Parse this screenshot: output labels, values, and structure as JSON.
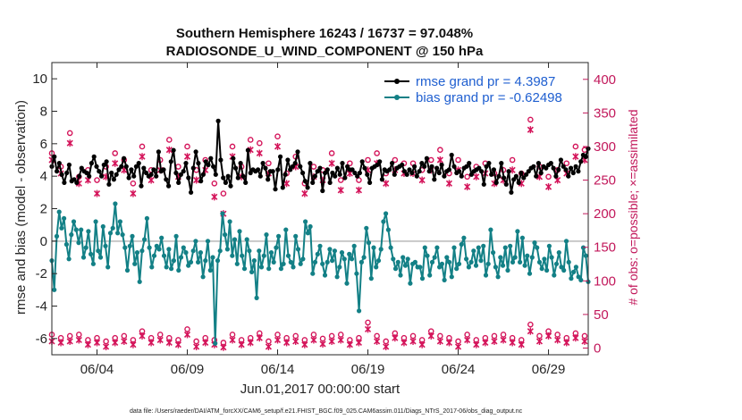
{
  "chart_data": {
    "type": "line",
    "title_line1": "Southern Hemisphere 16243 / 16737 = 97.048%",
    "title_line2": "RADIOSONDE_U_WIND_COMPONENT @ 150 hPa",
    "xlabel": "Jun.01,2017 00:00:00 start",
    "ylabel": "rmse and bias (model - observation)",
    "ylabel_right": "# of obs: o=possible; ×=assimilated",
    "xlim": [
      1.5,
      31.2
    ],
    "ylim": [
      -7,
      11
    ],
    "ylim_right": [
      -10,
      425
    ],
    "x_ticks": [
      4,
      9,
      14,
      19,
      24,
      29
    ],
    "x_tick_labels": [
      "06/04",
      "06/09",
      "06/14",
      "06/19",
      "06/24",
      "06/29"
    ],
    "y_ticks": [
      -6,
      -4,
      -2,
      0,
      2,
      4,
      6,
      8,
      10
    ],
    "y_tick_labels": [
      "-6",
      "-4",
      "-2",
      "0",
      "2",
      "4",
      "6",
      "8",
      "10"
    ],
    "y2_ticks": [
      0,
      50,
      100,
      150,
      200,
      250,
      300,
      350,
      400
    ],
    "y2_tick_labels": [
      "0",
      "50",
      "100",
      "150",
      "200",
      "250",
      "300",
      "350",
      "400"
    ],
    "series": [
      {
        "name": "rmse grand pr = 4.3987",
        "color": "#000000",
        "values": [
          4.6,
          5.2,
          4.3,
          4.8,
          4.1,
          3.6,
          4.2,
          4.7,
          3.7,
          3.8,
          3.6,
          4.0,
          4.5,
          4.3,
          4.2,
          4.0,
          4.8,
          5.2,
          4.6,
          4.3,
          4.0,
          4.7,
          4.9,
          3.5,
          4.2,
          3.8,
          4.1,
          4.4,
          4.6,
          5.1,
          4.6,
          3.9,
          4.4,
          4.0,
          4.6,
          4.8,
          3.4,
          4.5,
          4.2,
          4.0,
          4.1,
          4.4,
          4.0,
          5.5,
          4.3,
          4.4,
          3.8,
          3.4,
          4.9,
          5.6,
          4.2,
          3.6,
          4.1,
          4.3,
          4.8,
          3.9,
          3.0,
          4.5,
          5.5,
          4.8,
          3.7,
          4.1,
          4.9,
          4.7,
          5.1,
          4.6,
          4.1,
          7.4,
          5.0,
          3.9,
          3.6,
          4.0,
          3.4,
          5.1,
          4.5,
          3.9,
          4.8,
          4.0,
          3.6,
          5.6,
          4.2,
          4.4,
          4.3,
          4.4,
          4.0,
          4.8,
          4.5,
          3.8,
          4.3,
          4.3,
          3.2,
          4.4,
          5.2,
          3.3,
          4.1,
          5.0,
          4.4,
          4.6,
          4.8,
          5.5,
          4.6,
          4.2,
          3.7,
          3.3,
          4.8,
          3.6,
          4.0,
          4.3,
          4.5,
          3.1,
          4.2,
          4.4,
          3.6,
          4.2,
          4.0,
          4.5,
          4.1,
          4.8,
          3.9,
          4.6,
          4.4,
          4.4,
          4.2,
          4.0,
          4.2,
          4.9,
          4.5,
          4.1,
          3.6,
          4.5,
          4.6,
          4.7,
          4.9,
          3.8,
          4.4,
          4.3,
          4.4,
          4.8,
          4.1,
          4.5,
          4.6,
          4.7,
          4.3,
          4.1,
          4.4,
          4.2,
          4.6,
          4.0,
          4.3,
          4.8,
          4.6,
          5.1,
          4.3,
          4.6,
          3.8,
          4.5,
          4.2,
          4.7,
          4.0,
          4.3,
          4.4,
          5.3,
          4.6,
          4.2,
          4.3,
          4.0,
          4.5,
          4.6,
          4.8,
          4.1,
          4.3,
          4.4,
          4.5,
          4.3,
          3.5,
          4.6,
          4.8,
          4.1,
          4.4,
          3.6,
          4.0,
          4.8,
          3.9,
          3.5,
          4.3,
          3.0,
          3.8,
          4.0,
          3.6,
          4.2,
          3.9,
          4.1,
          4.3,
          4.5,
          4.6,
          4.0,
          4.8,
          4.2,
          4.6,
          4.5,
          4.7,
          4.8,
          4.5,
          4.0,
          4.4,
          5.0,
          4.6,
          4.4,
          4.0,
          4.5,
          4.2,
          4.6,
          4.3,
          4.9,
          5.3,
          5.2,
          5.7
        ]
      },
      {
        "name": "bias grand pr = -0.62498",
        "color": "#138086",
        "values": [
          -1.2,
          -3.0,
          0.3,
          1.8,
          0.8,
          1.4,
          -0.2,
          -1.1,
          0.4,
          1.2,
          0.7,
          -0.1,
          0.7,
          -1.0,
          -0.4,
          0.6,
          -0.8,
          -1.4,
          1.2,
          -0.6,
          -1.0,
          0.9,
          -0.3,
          -1.6,
          0.5,
          0.8,
          2.3,
          0.5,
          1.2,
          0.4,
          -0.4,
          -1.8,
          -0.3,
          0.3,
          -1.4,
          -0.7,
          -2.5,
          -0.6,
          0.1,
          1.4,
          -0.4,
          -1.6,
          -0.9,
          -0.3,
          -0.5,
          0.2,
          -0.9,
          -1.6,
          -0.5,
          -1.7,
          -1.2,
          0.3,
          -1.8,
          -1.0,
          -0.4,
          -0.7,
          -1.5,
          -1.3,
          -0.6,
          0.0,
          -1.3,
          -0.7,
          -2.2,
          -1.2,
          0.0,
          -1.8,
          -1.0,
          -6.3,
          -1.2,
          -0.6,
          1.7,
          0.4,
          -0.5,
          1.2,
          -0.9,
          0.1,
          -1.4,
          0.6,
          -0.9,
          -1.7,
          0.1,
          -0.6,
          -1.9,
          -1.2,
          -3.5,
          -0.6,
          -1.6,
          -0.9,
          0.4,
          -1.7,
          -0.7,
          -1.3,
          -0.4,
          0.3,
          -1.7,
          -1.4,
          0.7,
          -0.9,
          -1.3,
          -1.6,
          0.3,
          -0.5,
          -1.4,
          -1.1,
          1.2,
          0.5,
          0.9,
          -2.0,
          -1.3,
          -0.8,
          -0.3,
          -1.4,
          -2.1,
          -1.3,
          -0.5,
          -1.2,
          -0.6,
          -2.2,
          -1.6,
          -0.7,
          -1.1,
          -2.6,
          -0.8,
          -1.1,
          -0.3,
          -2.0,
          -4.3,
          -1.3,
          -1.0,
          0.8,
          -0.1,
          -2.3,
          -0.4,
          -1.6,
          -1.2,
          -0.5,
          1.2,
          1.7,
          0.7,
          -0.4,
          -1.1,
          -1.7,
          -1.3,
          -2.1,
          -1.0,
          -1.5,
          -1.1,
          -2.6,
          -1.4,
          -1.3,
          -1.6,
          -1.6,
          -2.3,
          -0.4,
          -0.9,
          -2.1,
          -1.3,
          -1.0,
          -0.4,
          -1.6,
          -1.4,
          -2.4,
          -1.0,
          -1.3,
          -2.2,
          -0.4,
          -1.7,
          -1.4,
          -0.2,
          0.2,
          -1.1,
          -1.6,
          -1.3,
          -0.6,
          -1.5,
          -0.4,
          -1.2,
          -0.3,
          -2.1,
          -1.4,
          0.7,
          -0.7,
          -1.6,
          -2.2,
          -1.0,
          -1.5,
          -0.4,
          -1.8,
          -0.3,
          -1.3,
          -1.0,
          0.6,
          -1.3,
          0.2,
          -1.5,
          -0.9,
          -2.0,
          -1.0,
          -0.1,
          -0.4,
          -1.3,
          -1.7,
          -1.1,
          -1.8,
          -0.3,
          -1.0,
          -2.1,
          -1.4,
          -0.7,
          -1.6,
          -1.8,
          0.0,
          -1.3,
          -2.3,
          -1.9,
          -1.6,
          -2.2,
          -2.4,
          -0.4,
          -0.9,
          -2.5
        ]
      }
    ],
    "possible_obs": {
      "marker": "o",
      "color": "#d4145a",
      "x": [
        1.5,
        2.0,
        2.5,
        3.0,
        3.5,
        4.0,
        4.5,
        5.0,
        5.5,
        6.0,
        6.5,
        7.0,
        7.5,
        8.0,
        8.5,
        9.0,
        9.5,
        10.0,
        10.5,
        11.0,
        11.5,
        12.0,
        12.5,
        13.0,
        13.5,
        14.0,
        14.5,
        15.0,
        15.5,
        16.0,
        16.5,
        17.0,
        17.5,
        18.0,
        18.5,
        19.0,
        19.5,
        20.0,
        20.5,
        21.0,
        21.5,
        22.0,
        22.5,
        23.0,
        23.5,
        24.0,
        24.5,
        25.0,
        25.5,
        26.0,
        26.5,
        27.0,
        27.5,
        28.0,
        28.5,
        29.0,
        29.5,
        30.0,
        30.5,
        31.0,
        1.5,
        2.0,
        2.5,
        3.0,
        3.5,
        4.0,
        4.5,
        5.0,
        5.5,
        6.0,
        6.5,
        7.0,
        7.5,
        8.0,
        8.5,
        9.0,
        9.5,
        10.0,
        10.5,
        11.0,
        11.5,
        12.0,
        12.5,
        13.0,
        13.5,
        14.0,
        14.5,
        15.0,
        15.5,
        16.0,
        16.5,
        17.0,
        17.5,
        18.0,
        18.5,
        19.0,
        19.5,
        20.0,
        20.5,
        21.0,
        21.5,
        22.0,
        22.5,
        23.0,
        23.5,
        24.0,
        24.5,
        25.0,
        25.5,
        26.0,
        26.5,
        27.0,
        27.5,
        28.0,
        28.5,
        29.0,
        29.5,
        30.0,
        30.5,
        31.0
      ],
      "y": [
        290,
        270,
        320,
        255,
        265,
        250,
        270,
        290,
        280,
        245,
        300,
        265,
        280,
        310,
        270,
        300,
        265,
        280,
        245,
        230,
        300,
        270,
        310,
        305,
        275,
        315,
        260,
        285,
        245,
        270,
        265,
        290,
        250,
        275,
        250,
        280,
        290,
        260,
        280,
        275,
        275,
        265,
        280,
        295,
        260,
        280,
        255,
        270,
        275,
        260,
        265,
        280,
        260,
        340,
        270,
        255,
        265,
        275,
        300,
        295,
        20,
        15,
        18,
        20,
        12,
        15,
        10,
        15,
        18,
        12,
        25,
        15,
        20,
        15,
        12,
        28,
        10,
        15,
        12,
        8,
        20,
        12,
        15,
        22,
        10,
        20,
        15,
        18,
        12,
        20,
        14,
        18,
        20,
        12,
        15,
        38,
        18,
        10,
        22,
        15,
        18,
        12,
        25,
        18,
        15,
        10,
        20,
        12,
        15,
        18,
        20,
        15,
        12,
        35,
        18,
        25,
        20,
        15,
        22,
        18
      ]
    },
    "assimilated_obs": {
      "marker": "x",
      "color": "#d4145a",
      "x": [
        1.5,
        2.0,
        2.5,
        3.0,
        3.5,
        4.0,
        4.5,
        5.0,
        5.5,
        6.0,
        6.5,
        7.0,
        7.5,
        8.0,
        8.5,
        9.0,
        9.5,
        10.0,
        10.5,
        11.0,
        11.5,
        12.0,
        12.5,
        13.0,
        13.5,
        14.0,
        14.5,
        15.0,
        15.5,
        16.0,
        16.5,
        17.0,
        17.5,
        18.0,
        18.5,
        19.0,
        19.5,
        20.0,
        20.5,
        21.0,
        21.5,
        22.0,
        22.5,
        23.0,
        23.5,
        24.0,
        24.5,
        25.0,
        25.5,
        26.0,
        26.5,
        27.0,
        27.5,
        28.0,
        28.5,
        29.0,
        29.5,
        30.0,
        30.5,
        31.0,
        1.5,
        2.0,
        2.5,
        3.0,
        3.5,
        4.0,
        4.5,
        5.0,
        5.5,
        6.0,
        6.5,
        7.0,
        7.5,
        8.0,
        8.5,
        9.0,
        9.5,
        10.0,
        10.5,
        11.0,
        11.5,
        12.0,
        12.5,
        13.0,
        13.5,
        14.0,
        14.5,
        15.0,
        15.5,
        16.0,
        16.5,
        17.0,
        17.5,
        18.0,
        18.5,
        19.0,
        19.5,
        20.0,
        20.5,
        21.0,
        21.5,
        22.0,
        22.5,
        23.0,
        23.5,
        24.0,
        24.5,
        25.0,
        25.5,
        26.0,
        26.5,
        27.0,
        27.5,
        28.0,
        28.5,
        29.0,
        29.5,
        30.0,
        30.5,
        31.0
      ],
      "y": [
        280,
        260,
        305,
        245,
        250,
        230,
        255,
        275,
        265,
        230,
        285,
        250,
        265,
        295,
        255,
        285,
        250,
        265,
        225,
        200,
        285,
        255,
        295,
        290,
        260,
        300,
        245,
        270,
        230,
        255,
        250,
        275,
        235,
        260,
        235,
        265,
        275,
        245,
        265,
        260,
        260,
        250,
        265,
        280,
        245,
        265,
        240,
        255,
        260,
        245,
        250,
        265,
        245,
        325,
        255,
        240,
        250,
        260,
        285,
        280,
        10,
        8,
        10,
        12,
        5,
        8,
        2,
        8,
        10,
        5,
        18,
        8,
        12,
        8,
        5,
        20,
        2,
        8,
        5,
        1,
        12,
        5,
        8,
        15,
        2,
        12,
        8,
        10,
        5,
        12,
        6,
        10,
        12,
        5,
        8,
        28,
        10,
        2,
        15,
        8,
        10,
        5,
        18,
        10,
        8,
        2,
        12,
        5,
        8,
        10,
        12,
        8,
        5,
        25,
        10,
        18,
        12,
        8,
        15,
        10
      ]
    },
    "legend_position": "top-right",
    "footer": "data file: /Users/raeder/DAI/ATM_forcXX/CAM6_setup/f.e21.FHIST_BGC.f09_025.CAM6assim.011/Diags_NTrS_2017-06/obs_diag_output.nc"
  }
}
